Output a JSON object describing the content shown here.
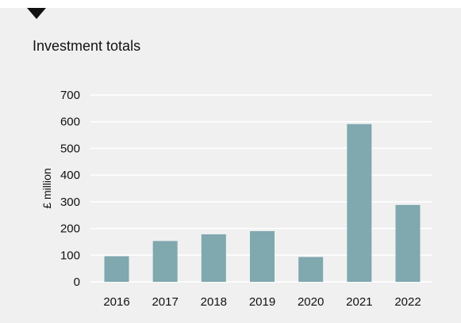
{
  "chart_data": {
    "type": "bar",
    "title": "Investment totals",
    "xlabel": "",
    "ylabel": "£ million",
    "categories": [
      "2016",
      "2017",
      "2018",
      "2019",
      "2020",
      "2021",
      "2022"
    ],
    "values": [
      96,
      153,
      178,
      190,
      93,
      591,
      288
    ],
    "ylim": [
      0,
      700
    ],
    "yticks": [
      "0",
      "100",
      "200",
      "300",
      "400",
      "500",
      "600",
      "700"
    ],
    "grid": true,
    "bar_color": "#7fa8af",
    "grid_color": "#ffffff",
    "background_color": "#f0f0f0"
  }
}
